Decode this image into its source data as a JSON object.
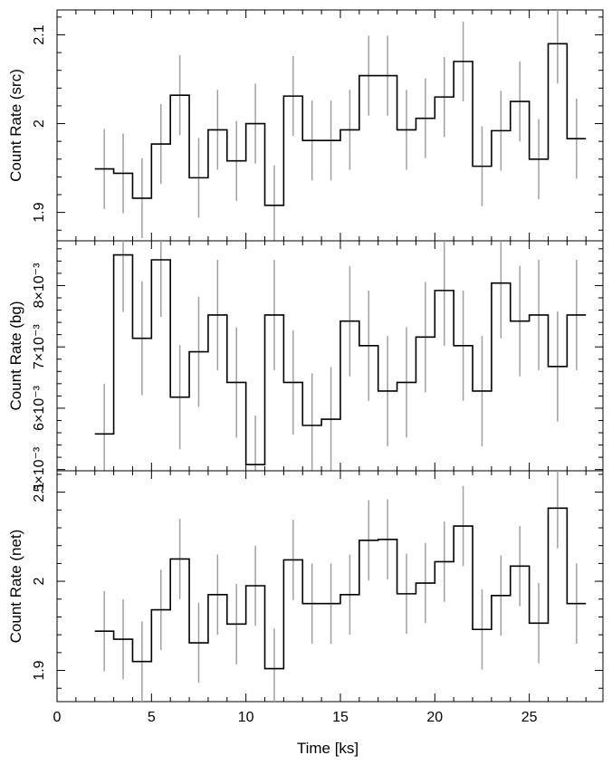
{
  "chart_data": {
    "type": "line",
    "style": "step-histogram-with-error-bars",
    "shared_x": {
      "label": "Time [ks]",
      "range": [
        0,
        28.9
      ],
      "ticks": [
        0,
        5,
        10,
        15,
        20,
        25
      ],
      "tick_labels": [
        "0",
        "5",
        "10",
        "15",
        "20",
        "25"
      ],
      "bin_edges": [
        2.0,
        3.0,
        4.0,
        5.0,
        6.0,
        7.0,
        8.0,
        9.0,
        10.0,
        11.0,
        12.0,
        13.0,
        14.0,
        15.0,
        16.0,
        17.0,
        18.0,
        19.0,
        20.0,
        21.0,
        22.0,
        23.0,
        24.0,
        25.0,
        26.0,
        27.0,
        28.0
      ],
      "x": [
        2.5,
        3.5,
        4.5,
        5.5,
        6.5,
        7.5,
        8.5,
        9.5,
        10.5,
        11.5,
        12.5,
        13.5,
        14.5,
        15.5,
        16.5,
        17.5,
        18.5,
        19.5,
        20.5,
        21.5,
        22.5,
        23.5,
        24.5,
        25.5,
        26.5,
        27.5
      ]
    },
    "panels": [
      {
        "id": "src",
        "ylabel": "Count Rate (src)",
        "ylim": [
          1.868,
          2.128
        ],
        "yticks": [
          1.9,
          2.0,
          2.1
        ],
        "ytick_labels": [
          "1.9",
          "2",
          "2.1"
        ],
        "values": [
          1.949,
          1.944,
          1.916,
          1.977,
          2.032,
          1.939,
          1.993,
          1.958,
          2.0,
          1.908,
          2.031,
          1.981,
          1.981,
          1.993,
          2.054,
          2.054,
          1.993,
          2.006,
          2.03,
          2.07,
          1.952,
          1.992,
          2.025,
          1.96,
          2.09,
          1.983
        ],
        "errors": [
          0.045,
          0.045,
          0.045,
          0.045,
          0.045,
          0.045,
          0.045,
          0.045,
          0.045,
          0.045,
          0.045,
          0.045,
          0.045,
          0.045,
          0.045,
          0.045,
          0.045,
          0.045,
          0.045,
          0.045,
          0.045,
          0.045,
          0.045,
          0.045,
          0.045,
          0.045
        ]
      },
      {
        "id": "bg",
        "ylabel": "Count Rate (bg)",
        "ylim": [
          0.00498,
          0.00873
        ],
        "yticks": [
          0.005,
          0.006,
          0.007,
          0.008
        ],
        "ytick_labels": [
          "5×10⁻³",
          "6×10⁻³",
          "7×10⁻³",
          "8×10⁻³"
        ],
        "values": [
          0.00558,
          0.0085,
          0.00714,
          0.00842,
          0.00618,
          0.00692,
          0.00752,
          0.00642,
          0.00508,
          0.00752,
          0.00642,
          0.00572,
          0.00582,
          0.00742,
          0.00702,
          0.00628,
          0.00642,
          0.00716,
          0.00792,
          0.00702,
          0.00628,
          0.00804,
          0.00742,
          0.00752,
          0.00668,
          0.00752
        ],
        "errors": [
          0.00082,
          0.00093,
          0.00093,
          0.00093,
          0.00085,
          0.0009,
          0.0009,
          0.0009,
          0.0008,
          0.0009,
          0.00085,
          0.00085,
          0.00085,
          0.0009,
          0.0009,
          0.0009,
          0.0009,
          0.0009,
          0.0009,
          0.0009,
          0.0009,
          0.0009,
          0.0009,
          0.0009,
          0.0009,
          0.0009
        ]
      },
      {
        "id": "net",
        "ylabel": "Count Rate (net)",
        "ylim": [
          1.865,
          2.124
        ],
        "yticks": [
          1.9,
          2.0,
          2.1
        ],
        "ytick_labels": [
          "1.9",
          "2",
          "2.1"
        ],
        "values": [
          1.944,
          1.935,
          1.91,
          1.968,
          2.025,
          1.931,
          1.985,
          1.952,
          1.995,
          1.902,
          2.024,
          1.975,
          1.975,
          1.985,
          2.046,
          2.047,
          1.986,
          1.998,
          2.022,
          2.062,
          1.946,
          1.984,
          2.017,
          1.953,
          2.082,
          1.975
        ],
        "errors": [
          0.045,
          0.045,
          0.045,
          0.045,
          0.045,
          0.045,
          0.045,
          0.045,
          0.045,
          0.045,
          0.045,
          0.045,
          0.045,
          0.045,
          0.045,
          0.045,
          0.045,
          0.045,
          0.045,
          0.045,
          0.045,
          0.045,
          0.045,
          0.045,
          0.045,
          0.045
        ]
      }
    ],
    "colors": {
      "line": "#000000",
      "error_bar": "#a0a0a0"
    },
    "grid": false,
    "legend": "none"
  }
}
